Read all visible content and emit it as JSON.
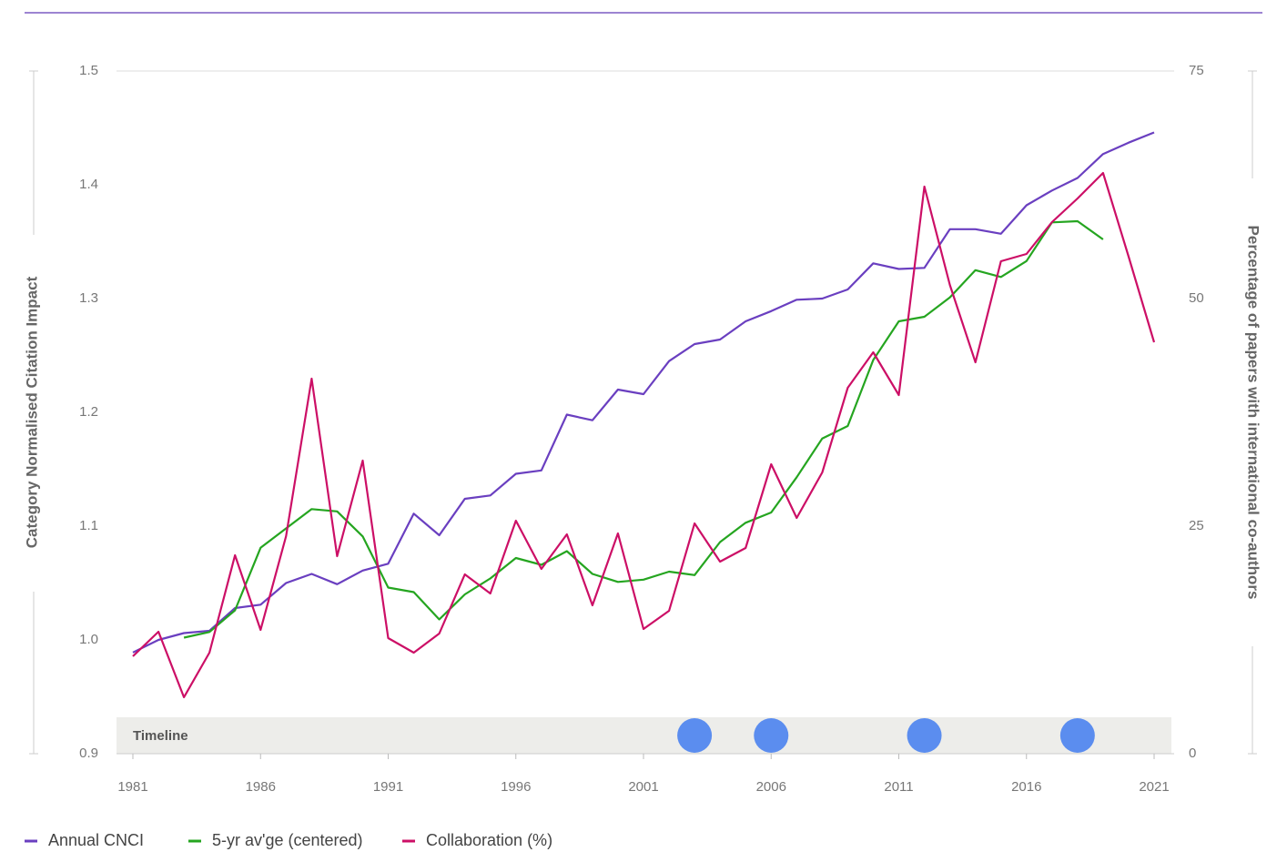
{
  "chart_data": {
    "type": "line",
    "y_label": "Category Normalised Citation Impact",
    "y2_label": "Percentage of papers with international co-authors",
    "x": [
      1981,
      1982,
      1983,
      1984,
      1985,
      1986,
      1987,
      1988,
      1989,
      1990,
      1991,
      1992,
      1993,
      1994,
      1995,
      1996,
      1997,
      1998,
      1999,
      2000,
      2001,
      2002,
      2003,
      2004,
      2005,
      2006,
      2007,
      2008,
      2009,
      2010,
      2011,
      2012,
      2013,
      2014,
      2015,
      2016,
      2017,
      2018,
      2019,
      2020,
      2021
    ],
    "xlim": [
      1981,
      2021
    ],
    "xticks": [
      1981,
      1986,
      1991,
      1996,
      2001,
      2006,
      2011,
      2016,
      2021
    ],
    "ylim": [
      0.9,
      1.5
    ],
    "yticks": [
      0.9,
      {
        "value": 1,
        "label": "1.0"
      },
      1.1,
      1.2,
      1.3,
      1.4,
      1.5
    ],
    "y2lim": [
      0,
      75
    ],
    "y2ticks": [
      0,
      25,
      50,
      75
    ],
    "series": [
      {
        "name": "Annual CNCI",
        "color": "#6a3fc0",
        "values": [
          0.989,
          1.0,
          1.006,
          1.008,
          1.028,
          1.031,
          1.05,
          1.058,
          1.049,
          1.061,
          1.067,
          1.111,
          1.092,
          1.124,
          1.127,
          1.146,
          1.149,
          1.198,
          1.193,
          1.22,
          1.216,
          1.245,
          1.26,
          1.264,
          1.28,
          1.289,
          1.299,
          1.3,
          1.308,
          1.331,
          1.326,
          1.327,
          1.361,
          1.361,
          1.357,
          1.382,
          1.395,
          1.406,
          1.427,
          1.437,
          1.446
        ]
      },
      {
        "name": "5-yr av'ge (centered)",
        "color": "#25a520",
        "values": [
          null,
          null,
          1.002,
          1.007,
          1.026,
          1.081,
          1.098,
          1.115,
          1.113,
          1.091,
          1.046,
          1.042,
          1.018,
          1.04,
          1.054,
          1.072,
          1.066,
          1.078,
          1.058,
          1.051,
          1.053,
          1.06,
          1.057,
          1.086,
          1.103,
          1.112,
          1.143,
          1.177,
          1.188,
          1.246,
          1.28,
          1.284,
          1.301,
          1.325,
          1.319,
          1.333,
          1.367,
          1.368,
          1.352,
          null,
          null
        ]
      },
      {
        "name": "Collaboration (%)",
        "color": "#cc0f66",
        "axis": "y2",
        "values": [
          10.7,
          13.4,
          6.2,
          11.1,
          21.8,
          13.6,
          23.9,
          41.2,
          21.7,
          32.2,
          12.7,
          11.1,
          13.2,
          19.7,
          17.6,
          25.6,
          20.3,
          24.1,
          16.3,
          24.2,
          13.7,
          15.7,
          25.3,
          21.1,
          22.6,
          31.8,
          25.9,
          30.9,
          40.2,
          44.1,
          39.4,
          62.3,
          51.5,
          43.0,
          54.1,
          54.9,
          58.4,
          61.0,
          63.8,
          54.6,
          45.2
        ]
      }
    ],
    "timeline": {
      "label": "Timeline",
      "color": "#5b8def",
      "events": [
        2003,
        2006,
        2012,
        2018
      ]
    }
  }
}
